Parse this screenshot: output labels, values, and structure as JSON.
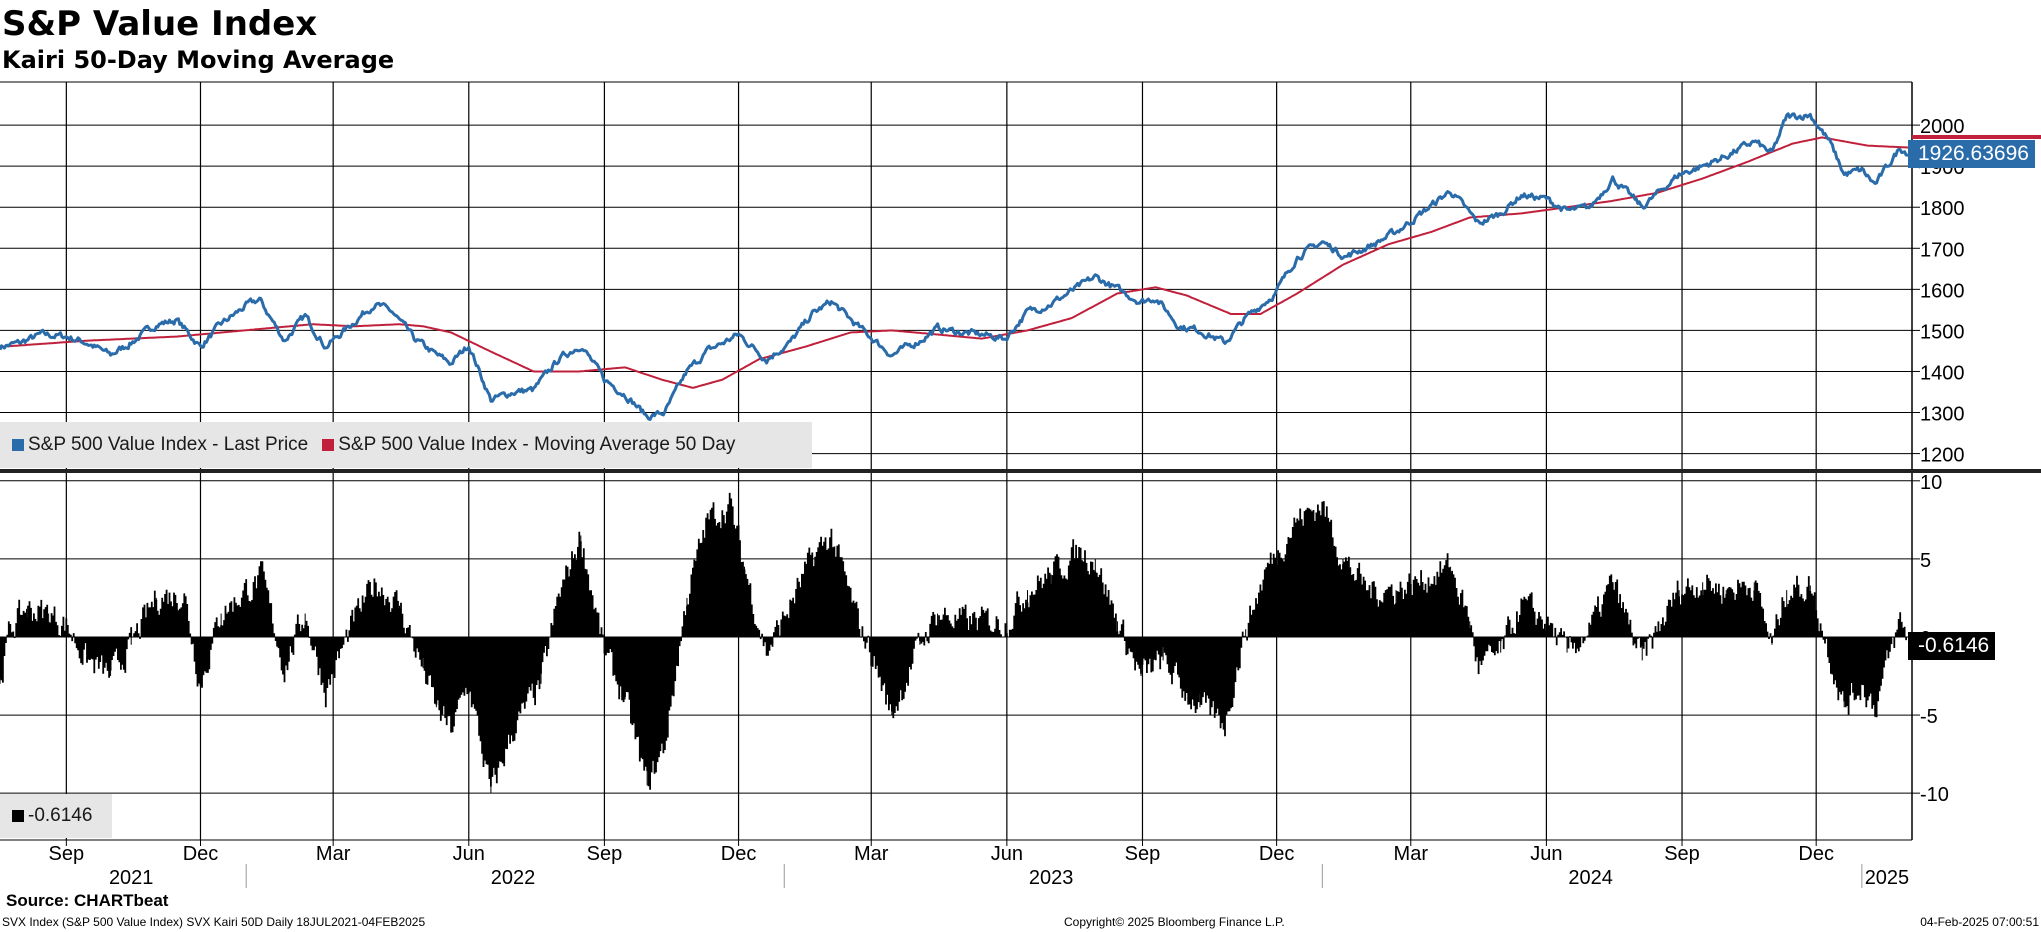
{
  "title": "S&P Value Index",
  "subtitle": "Kairi 50-Day Moving Average",
  "colors": {
    "last_price": "#2a6baa",
    "moving_average": "#c0203b",
    "kairi": "#000000",
    "legend_bg": "#e6e6e6"
  },
  "legend_top": [
    {
      "label": "S&P 500 Value Index - Last Price",
      "color": "#2a6baa"
    },
    {
      "label": "S&P 500 Value Index - Moving Average 50 Day",
      "color": "#c0203b"
    }
  ],
  "legend_bottom": {
    "label": "-0.6146",
    "color": "#000000"
  },
  "last_price_tag": "1926.63696",
  "kairi_tag": "-0.6146",
  "footer": {
    "source": "Source: CHARTbeat",
    "description": "SVX Index (S&P 500 Value Index) SVX Kairi 50D  Daily 18JUL2021-04FEB2025",
    "copyright": "Copyright© 2025 Bloomberg Finance L.P.",
    "datetime": "04-Feb-2025 07:00:51"
  },
  "chart_data": [
    {
      "type": "line",
      "title": "S&P Value Index",
      "x_range": [
        "2021-07-18",
        "2025-02-04"
      ],
      "y_axis": {
        "ticks": [
          1200,
          1300,
          1400,
          1500,
          1600,
          1700,
          1800,
          1900,
          2000
        ],
        "ylim": [
          1160,
          2105
        ],
        "position": "right"
      },
      "grid": true,
      "legend": "bottom-left",
      "series": [
        {
          "name": "S&P 500 Value Index - Last Price",
          "color": "#2a6baa",
          "points": [
            [
              "2021-07-18",
              1460
            ],
            [
              "2021-08-01",
              1470
            ],
            [
              "2021-08-15",
              1490
            ],
            [
              "2021-09-01",
              1485
            ],
            [
              "2021-09-15",
              1470
            ],
            [
              "2021-10-01",
              1440
            ],
            [
              "2021-10-15",
              1470
            ],
            [
              "2021-11-01",
              1515
            ],
            [
              "2021-11-15",
              1525
            ],
            [
              "2021-12-01",
              1460
            ],
            [
              "2021-12-15",
              1515
            ],
            [
              "2022-01-01",
              1560
            ],
            [
              "2022-01-10",
              1575
            ],
            [
              "2022-01-27",
              1475
            ],
            [
              "2022-02-10",
              1535
            ],
            [
              "2022-02-24",
              1460
            ],
            [
              "2022-03-15",
              1520
            ],
            [
              "2022-03-29",
              1565
            ],
            [
              "2022-04-10",
              1545
            ],
            [
              "2022-04-25",
              1480
            ],
            [
              "2022-05-10",
              1440
            ],
            [
              "2022-05-20",
              1420
            ],
            [
              "2022-06-01",
              1465
            ],
            [
              "2022-06-16",
              1330
            ],
            [
              "2022-07-01",
              1350
            ],
            [
              "2022-07-15",
              1355
            ],
            [
              "2022-08-01",
              1430
            ],
            [
              "2022-08-16",
              1465
            ],
            [
              "2022-09-01",
              1380
            ],
            [
              "2022-09-15",
              1345
            ],
            [
              "2022-09-30",
              1290
            ],
            [
              "2022-10-12",
              1300
            ],
            [
              "2022-10-27",
              1400
            ],
            [
              "2022-11-10",
              1450
            ],
            [
              "2022-12-01",
              1490
            ],
            [
              "2022-12-20",
              1430
            ],
            [
              "2023-01-05",
              1470
            ],
            [
              "2023-01-20",
              1540
            ],
            [
              "2023-02-02",
              1570
            ],
            [
              "2023-02-20",
              1510
            ],
            [
              "2023-03-15",
              1440
            ],
            [
              "2023-04-03",
              1475
            ],
            [
              "2023-04-15",
              1505
            ],
            [
              "2023-05-01",
              1495
            ],
            [
              "2023-05-15",
              1490
            ],
            [
              "2023-05-31",
              1480
            ],
            [
              "2023-06-15",
              1545
            ],
            [
              "2023-07-01",
              1565
            ],
            [
              "2023-07-31",
              1630
            ],
            [
              "2023-08-15",
              1600
            ],
            [
              "2023-08-31",
              1570
            ],
            [
              "2023-09-10",
              1580
            ],
            [
              "2023-09-26",
              1510
            ],
            [
              "2023-10-10",
              1500
            ],
            [
              "2023-10-27",
              1470
            ],
            [
              "2023-11-10",
              1530
            ],
            [
              "2023-11-30",
              1590
            ],
            [
              "2023-12-15",
              1680
            ],
            [
              "2024-01-01",
              1715
            ],
            [
              "2024-01-17",
              1680
            ],
            [
              "2024-02-05",
              1710
            ],
            [
              "2024-02-20",
              1740
            ],
            [
              "2024-03-10",
              1790
            ],
            [
              "2024-03-28",
              1840
            ],
            [
              "2024-04-16",
              1760
            ],
            [
              "2024-05-01",
              1785
            ],
            [
              "2024-05-15",
              1830
            ],
            [
              "2024-06-01",
              1820
            ],
            [
              "2024-06-15",
              1790
            ],
            [
              "2024-07-01",
              1800
            ],
            [
              "2024-07-16",
              1870
            ],
            [
              "2024-08-05",
              1800
            ],
            [
              "2024-08-30",
              1880
            ],
            [
              "2024-09-15",
              1900
            ],
            [
              "2024-10-01",
              1925
            ],
            [
              "2024-10-20",
              1960
            ],
            [
              "2024-11-01",
              1930
            ],
            [
              "2024-11-11",
              2020
            ],
            [
              "2024-11-27",
              2025
            ],
            [
              "2024-12-10",
              1960
            ],
            [
              "2024-12-20",
              1880
            ],
            [
              "2025-01-01",
              1890
            ],
            [
              "2025-01-10",
              1855
            ],
            [
              "2025-01-27",
              1945
            ],
            [
              "2025-02-04",
              1926.64
            ]
          ]
        },
        {
          "name": "S&P 500 Value Index - Moving Average 50 Day",
          "color": "#c0203b",
          "points": [
            [
              "2021-07-18",
              1460
            ],
            [
              "2021-09-15",
              1475
            ],
            [
              "2021-11-15",
              1485
            ],
            [
              "2022-01-15",
              1505
            ],
            [
              "2022-02-15",
              1515
            ],
            [
              "2022-03-15",
              1510
            ],
            [
              "2022-04-15",
              1515
            ],
            [
              "2022-05-01",
              1510
            ],
            [
              "2022-05-20",
              1495
            ],
            [
              "2022-06-15",
              1450
            ],
            [
              "2022-07-15",
              1400
            ],
            [
              "2022-08-15",
              1400
            ],
            [
              "2022-09-15",
              1410
            ],
            [
              "2022-10-10",
              1380
            ],
            [
              "2022-10-31",
              1360
            ],
            [
              "2022-11-20",
              1380
            ],
            [
              "2022-12-15",
              1430
            ],
            [
              "2023-01-15",
              1460
            ],
            [
              "2023-02-15",
              1495
            ],
            [
              "2023-03-15",
              1500
            ],
            [
              "2023-04-15",
              1490
            ],
            [
              "2023-05-15",
              1480
            ],
            [
              "2023-06-15",
              1500
            ],
            [
              "2023-07-15",
              1530
            ],
            [
              "2023-08-15",
              1590
            ],
            [
              "2023-09-10",
              1605
            ],
            [
              "2023-10-01",
              1585
            ],
            [
              "2023-10-31",
              1540
            ],
            [
              "2023-11-20",
              1540
            ],
            [
              "2023-12-15",
              1590
            ],
            [
              "2024-01-15",
              1660
            ],
            [
              "2024-02-15",
              1710
            ],
            [
              "2024-03-15",
              1740
            ],
            [
              "2024-04-10",
              1775
            ],
            [
              "2024-05-15",
              1785
            ],
            [
              "2024-06-15",
              1800
            ],
            [
              "2024-07-15",
              1815
            ],
            [
              "2024-08-15",
              1835
            ],
            [
              "2024-09-15",
              1870
            ],
            [
              "2024-10-15",
              1910
            ],
            [
              "2024-11-15",
              1955
            ],
            [
              "2024-12-05",
              1970
            ],
            [
              "2025-01-05",
              1950
            ],
            [
              "2025-02-04",
              1945
            ]
          ]
        }
      ]
    },
    {
      "type": "bar",
      "title": "Kairi 50-Day Moving Average",
      "x_range": [
        "2021-07-18",
        "2025-02-04"
      ],
      "y_axis": {
        "ticks": [
          -10,
          -5,
          0,
          5,
          10
        ],
        "ylim": [
          -13,
          10.5
        ],
        "position": "right"
      },
      "grid": true,
      "legend": "bottom-left",
      "series": [
        {
          "name": "-0.6146",
          "color": "#000000",
          "points": [
            [
              "2021-07-18",
              -3
            ],
            [
              "2021-07-25",
              0.5
            ],
            [
              "2021-08-05",
              1.8
            ],
            [
              "2021-08-20",
              1.5
            ],
            [
              "2021-09-01",
              0.8
            ],
            [
              "2021-09-15",
              -1.5
            ],
            [
              "2021-10-01",
              -2.5
            ],
            [
              "2021-10-15",
              -0.5
            ],
            [
              "2021-11-01",
              2.5
            ],
            [
              "2021-11-20",
              2.8
            ],
            [
              "2021-12-01",
              -3
            ],
            [
              "2021-12-15",
              1.5
            ],
            [
              "2022-01-01",
              3
            ],
            [
              "2022-01-12",
              3.7
            ],
            [
              "2022-01-27",
              -2
            ],
            [
              "2022-02-10",
              1.5
            ],
            [
              "2022-02-24",
              -3.5
            ],
            [
              "2022-03-15",
              1
            ],
            [
              "2022-03-30",
              3.5
            ],
            [
              "2022-04-15",
              2
            ],
            [
              "2022-05-01",
              -2
            ],
            [
              "2022-05-10",
              -4.5
            ],
            [
              "2022-05-20",
              -6
            ],
            [
              "2022-06-01",
              -3
            ],
            [
              "2022-06-16",
              -10
            ],
            [
              "2022-07-01",
              -6
            ],
            [
              "2022-07-20",
              -3
            ],
            [
              "2022-08-01",
              2.5
            ],
            [
              "2022-08-16",
              6.5
            ],
            [
              "2022-09-01",
              -1
            ],
            [
              "2022-09-15",
              -4
            ],
            [
              "2022-09-30",
              -9.5
            ],
            [
              "2022-10-12",
              -7
            ],
            [
              "2022-10-27",
              2.5
            ],
            [
              "2022-11-10",
              7.5
            ],
            [
              "2022-11-25",
              8.5
            ],
            [
              "2022-12-05",
              4.5
            ],
            [
              "2022-12-20",
              -1
            ],
            [
              "2023-01-05",
              2
            ],
            [
              "2023-01-20",
              5
            ],
            [
              "2023-02-02",
              6.5
            ],
            [
              "2023-02-20",
              1
            ],
            [
              "2023-03-01",
              -1
            ],
            [
              "2023-03-15",
              -5
            ],
            [
              "2023-04-03",
              -0.5
            ],
            [
              "2023-04-15",
              1.5
            ],
            [
              "2023-05-01",
              1
            ],
            [
              "2023-05-15",
              1
            ],
            [
              "2023-06-01",
              1
            ],
            [
              "2023-06-15",
              3
            ],
            [
              "2023-07-01",
              4
            ],
            [
              "2023-07-20",
              5.5
            ],
            [
              "2023-07-31",
              5
            ],
            [
              "2023-08-15",
              1
            ],
            [
              "2023-08-31",
              -2.5
            ],
            [
              "2023-09-15",
              -1.5
            ],
            [
              "2023-09-30",
              -3.5
            ],
            [
              "2023-10-10",
              -4.5
            ],
            [
              "2023-10-27",
              -5.5
            ],
            [
              "2023-11-10",
              0.5
            ],
            [
              "2023-11-25",
              4.5
            ],
            [
              "2023-12-15",
              7.5
            ],
            [
              "2024-01-01",
              8.5
            ],
            [
              "2024-01-15",
              5
            ],
            [
              "2024-02-01",
              3
            ],
            [
              "2024-02-20",
              3
            ],
            [
              "2024-03-05",
              3.5
            ],
            [
              "2024-03-28",
              4.5
            ],
            [
              "2024-04-10",
              1
            ],
            [
              "2024-04-16",
              -2
            ],
            [
              "2024-05-01",
              -1
            ],
            [
              "2024-05-15",
              2
            ],
            [
              "2024-06-01",
              1
            ],
            [
              "2024-06-15",
              -1
            ],
            [
              "2024-07-01",
              0.5
            ],
            [
              "2024-07-16",
              3.5
            ],
            [
              "2024-08-05",
              -1.5
            ],
            [
              "2024-08-30",
              3
            ],
            [
              "2024-09-15",
              3.5
            ],
            [
              "2024-10-01",
              3
            ],
            [
              "2024-10-20",
              3.5
            ],
            [
              "2024-11-01",
              -0.5
            ],
            [
              "2024-11-11",
              3
            ],
            [
              "2024-11-27",
              3.3
            ],
            [
              "2024-12-10",
              -1
            ],
            [
              "2024-12-20",
              -4.5
            ],
            [
              "2025-01-01",
              -3
            ],
            [
              "2025-01-10",
              -4.5
            ],
            [
              "2025-01-27",
              1
            ],
            [
              "2025-02-04",
              -0.6146
            ]
          ]
        }
      ]
    }
  ],
  "x_axis": {
    "month_ticks": [
      "2021-09",
      "2021-12",
      "2022-03",
      "2022-06",
      "2022-09",
      "2022-12",
      "2023-03",
      "2023-06",
      "2023-09",
      "2023-12",
      "2024-03",
      "2024-06",
      "2024-09",
      "2024-12"
    ],
    "month_labels": [
      "Sep",
      "Dec",
      "Mar",
      "Jun",
      "Sep",
      "Dec",
      "Mar",
      "Jun",
      "Sep",
      "Dec",
      "Mar",
      "Jun",
      "Sep",
      "Dec"
    ],
    "year_labels": [
      {
        "label": "2021",
        "date": "2021-10-15"
      },
      {
        "label": "2022",
        "date": "2022-07-01"
      },
      {
        "label": "2023",
        "date": "2023-07-01"
      },
      {
        "label": "2024",
        "date": "2024-07-01"
      },
      {
        "label": "2025",
        "date": "2025-01-18"
      }
    ],
    "year_boundaries": [
      "2022-01-01",
      "2023-01-01",
      "2024-01-01",
      "2025-01-01"
    ]
  }
}
